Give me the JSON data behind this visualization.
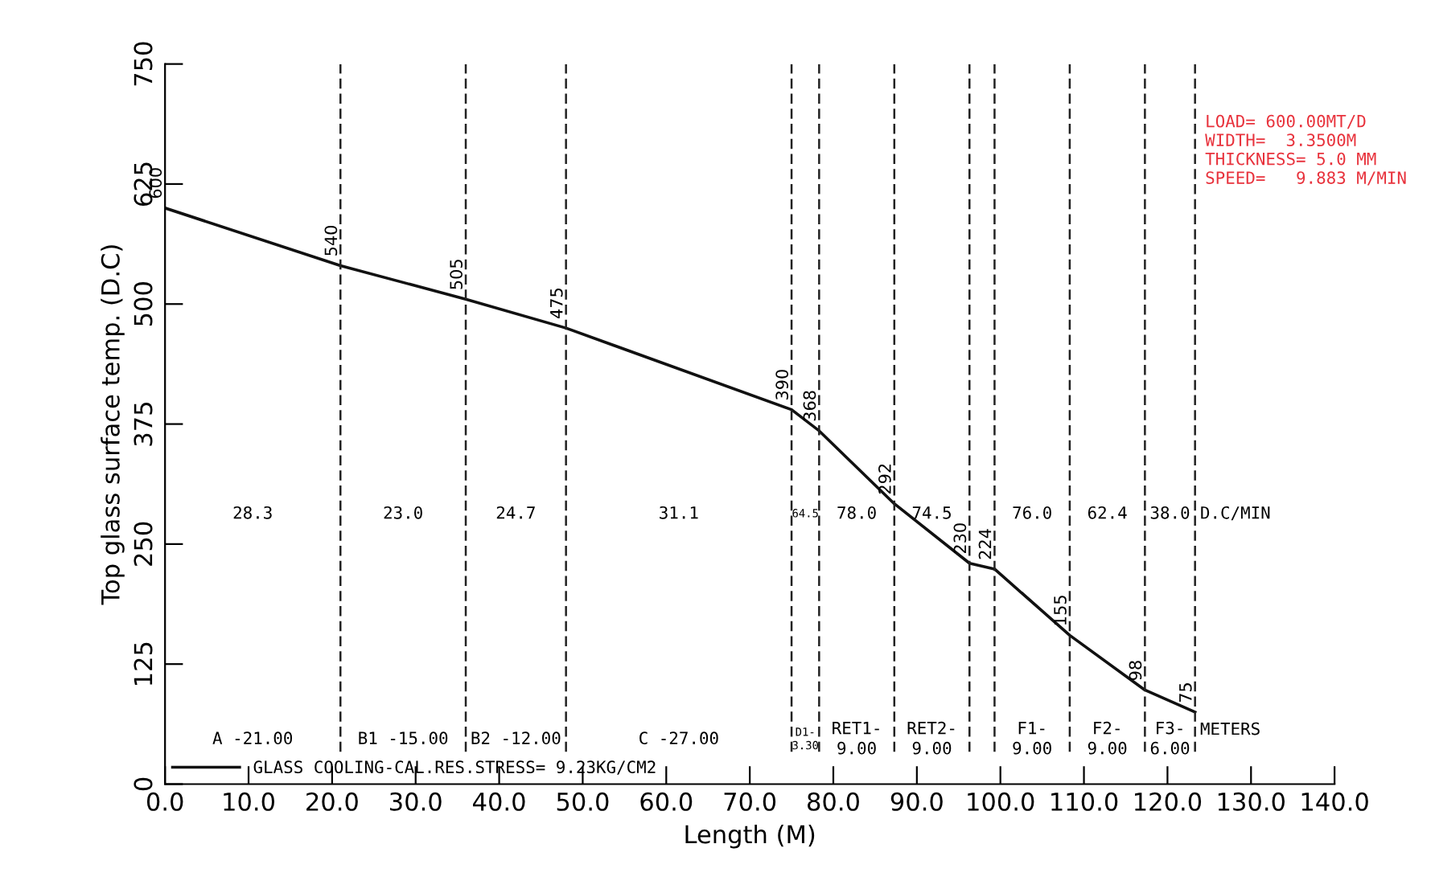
{
  "chart_data": {
    "type": "line",
    "xlabel": "Length (M)",
    "ylabel": "Top glass surface temp. (D.C)",
    "x": [
      0,
      21,
      36,
      48,
      75,
      78.3,
      87.3,
      96.3,
      99.3,
      108.3,
      117.3,
      123.3
    ],
    "series": [
      {
        "name": "GLASS COOLING-CAL.RES.STRESS= 9.23KG/CM2",
        "color": "#111111",
        "values": [
          600,
          540,
          505,
          475,
          390,
          368,
          292,
          230,
          224,
          155,
          98,
          75
        ]
      }
    ],
    "data_labels": true,
    "xlim": [
      0,
      140
    ],
    "ylim": [
      0,
      750
    ],
    "xticks": [
      {
        "value": 0,
        "label": "0.0"
      },
      {
        "value": 10,
        "label": "10.0"
      },
      {
        "value": 20,
        "label": "20.0"
      },
      {
        "value": 30,
        "label": "30.0"
      },
      {
        "value": 40,
        "label": "40.0"
      },
      {
        "value": 50,
        "label": "50.0"
      },
      {
        "value": 60,
        "label": "60.0"
      },
      {
        "value": 70,
        "label": "70.0"
      },
      {
        "value": 80,
        "label": "80.0"
      },
      {
        "value": 90,
        "label": "90.0"
      },
      {
        "value": 100,
        "label": "100.0"
      },
      {
        "value": 110,
        "label": "110.0"
      },
      {
        "value": 120,
        "label": "120.0"
      },
      {
        "value": 130,
        "label": "130.0"
      },
      {
        "value": 140,
        "label": "140.0"
      }
    ],
    "yticks": [
      0,
      125,
      250,
      375,
      500,
      625,
      750
    ],
    "grid": false,
    "legend": "bottom left",
    "line_style": "solid",
    "marker": "none",
    "ref_lines": [
      {
        "axis": "x",
        "value": 21,
        "line_style": "dashed"
      },
      {
        "axis": "x",
        "value": 36,
        "line_style": "dashed"
      },
      {
        "axis": "x",
        "value": 48,
        "line_style": "dashed"
      },
      {
        "axis": "x",
        "value": 75,
        "line_style": "dashed"
      },
      {
        "axis": "x",
        "value": 78.3,
        "line_style": "dashed"
      },
      {
        "axis": "x",
        "value": 87.3,
        "line_style": "dashed"
      },
      {
        "axis": "x",
        "value": 96.3,
        "line_style": "dashed"
      },
      {
        "axis": "x",
        "value": 99.3,
        "line_style": "dashed"
      },
      {
        "axis": "x",
        "value": 108.3,
        "line_style": "dashed"
      },
      {
        "axis": "x",
        "value": 117.3,
        "line_style": "dashed"
      },
      {
        "axis": "x",
        "value": 123.3,
        "line_style": "dashed"
      }
    ],
    "annotations": [
      "28.3",
      "23.0",
      "24.7",
      "31.1",
      "64.5",
      "78.0",
      "74.5",
      "76.0",
      "62.4",
      "38.0",
      "D.C/MIN",
      "A -21.00",
      "B1 -15.00",
      "B2 -12.00",
      "C -27.00",
      "D1-\n3.30",
      "RET1-\n9.00",
      "RET2-\n9.00",
      "F1-\n9.00",
      "F2-\n9.00",
      "F3-\n6.00",
      "METERS",
      "LOAD= 600.00MT/D\nWIDTH=  3.3500M\nTHICKNESS= 5.0 MM\nSPEED=   9.883 M/MIN"
    ]
  }
}
